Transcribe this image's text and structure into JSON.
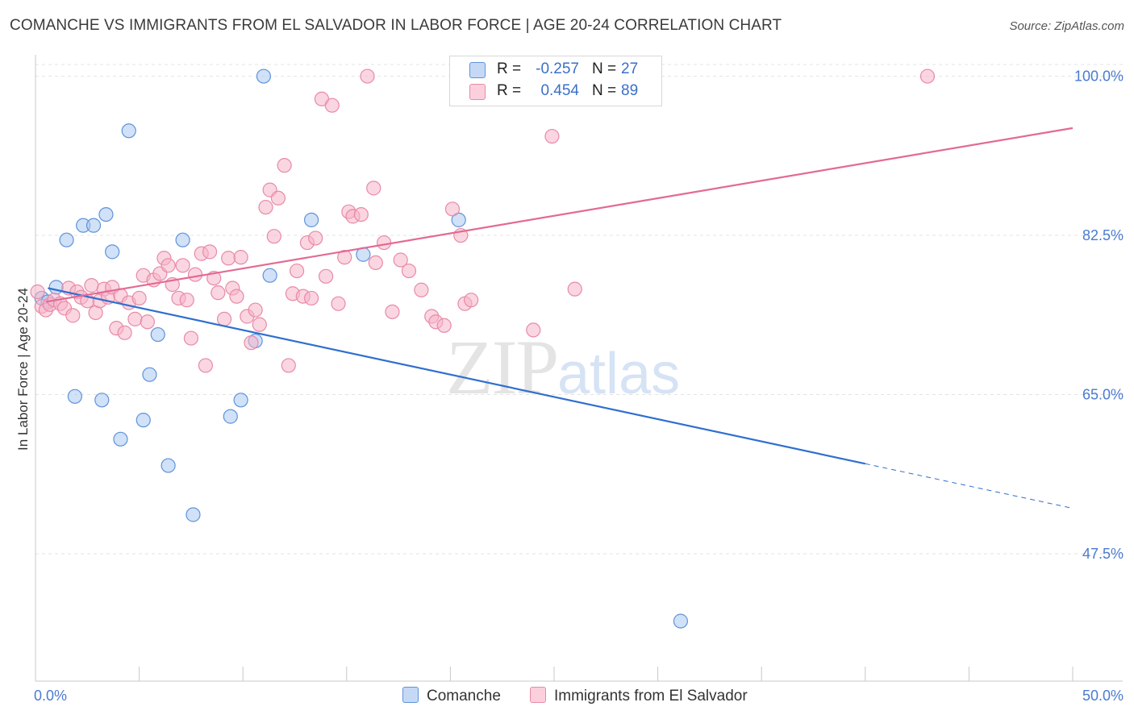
{
  "header": {
    "title": "COMANCHE VS IMMIGRANTS FROM EL SALVADOR IN LABOR FORCE | AGE 20-24 CORRELATION CHART",
    "source": "Source: ZipAtlas.com"
  },
  "watermark": {
    "zip": "ZIP",
    "atlas": "atlas"
  },
  "legend": {
    "rows": [
      {
        "r_label": "R =",
        "r_value": "-0.257",
        "n_label": "N =",
        "n_value": "27",
        "color": "#a9c8f2"
      },
      {
        "r_label": "R =",
        "r_value": "0.454",
        "n_label": "N =",
        "n_value": "89",
        "color": "#f6b5c8"
      }
    ]
  },
  "bottom_legend": {
    "comanche": "Comanche",
    "salvador": "Immigrants from El Salvador"
  },
  "colors": {
    "comanche_fill": "#a9c8f2",
    "comanche_stroke": "#5f93d9",
    "comanche_line": "#2f6fcf",
    "salvador_fill": "#f6b5c8",
    "salvador_stroke": "#e88aa6",
    "salvador_line": "#e36a93",
    "tick_label": "#4a7bd0",
    "grid": "#e3e3e3"
  },
  "chart_data": {
    "type": "scatter",
    "title": "COMANCHE VS IMMIGRANTS FROM EL SALVADOR IN LABOR FORCE | AGE 20-24 CORRELATION CHART",
    "xlabel": "",
    "ylabel": "In Labor Force | Age 20-24",
    "xlim": [
      0,
      50
    ],
    "ylim": [
      33.5,
      102
    ],
    "x_tick_labels": [
      "0.0%",
      "50.0%"
    ],
    "y_ticks": [
      47.5,
      65.0,
      82.5,
      100.0
    ],
    "y_tick_labels": [
      "47.5%",
      "65.0%",
      "82.5%",
      "100.0%"
    ],
    "grid": true,
    "legend_position": "top-center",
    "series": [
      {
        "name": "Comanche",
        "r": -0.257,
        "n": 27,
        "points": [
          [
            0.3,
            75.6
          ],
          [
            0.6,
            75.2
          ],
          [
            1.0,
            76.8
          ],
          [
            1.5,
            82.0
          ],
          [
            1.9,
            64.8
          ],
          [
            2.3,
            83.6
          ],
          [
            2.8,
            83.6
          ],
          [
            3.2,
            64.4
          ],
          [
            3.4,
            84.8
          ],
          [
            3.7,
            80.7
          ],
          [
            4.1,
            60.1
          ],
          [
            4.5,
            94.0
          ],
          [
            5.2,
            62.2
          ],
          [
            5.5,
            67.2
          ],
          [
            5.9,
            71.6
          ],
          [
            6.4,
            57.2
          ],
          [
            7.1,
            82.0
          ],
          [
            7.6,
            51.8
          ],
          [
            9.4,
            62.6
          ],
          [
            9.9,
            64.4
          ],
          [
            10.6,
            70.9
          ],
          [
            11.0,
            100.0
          ],
          [
            11.3,
            78.1
          ],
          [
            13.3,
            84.2
          ],
          [
            15.8,
            80.4
          ],
          [
            20.4,
            84.2
          ],
          [
            31.1,
            40.1
          ]
        ],
        "trend": {
          "x0": 0.6,
          "y0": 76.7,
          "x1": 40.0,
          "y1": 57.4,
          "dash_to_x": 50.0,
          "dash_to_y": 52.5
        }
      },
      {
        "name": "Immigrants from El Salvador",
        "r": 0.454,
        "n": 89,
        "points": [
          [
            0.1,
            76.3
          ],
          [
            0.3,
            74.7
          ],
          [
            0.5,
            74.3
          ],
          [
            0.7,
            74.9
          ],
          [
            0.9,
            75.4
          ],
          [
            1.2,
            75.0
          ],
          [
            1.4,
            74.5
          ],
          [
            1.6,
            76.7
          ],
          [
            1.8,
            73.7
          ],
          [
            2.0,
            76.3
          ],
          [
            2.2,
            75.7
          ],
          [
            2.5,
            75.3
          ],
          [
            2.7,
            77.0
          ],
          [
            2.9,
            74.0
          ],
          [
            3.1,
            75.3
          ],
          [
            3.3,
            76.6
          ],
          [
            3.5,
            75.7
          ],
          [
            3.7,
            76.8
          ],
          [
            3.9,
            72.3
          ],
          [
            4.1,
            75.9
          ],
          [
            4.3,
            71.8
          ],
          [
            4.5,
            75.1
          ],
          [
            4.8,
            73.3
          ],
          [
            5.0,
            75.6
          ],
          [
            5.2,
            78.1
          ],
          [
            5.4,
            73.0
          ],
          [
            5.7,
            77.6
          ],
          [
            6.0,
            78.3
          ],
          [
            6.2,
            80.0
          ],
          [
            6.4,
            79.2
          ],
          [
            6.6,
            77.1
          ],
          [
            6.9,
            75.6
          ],
          [
            7.1,
            79.2
          ],
          [
            7.3,
            75.4
          ],
          [
            7.5,
            71.2
          ],
          [
            7.7,
            78.2
          ],
          [
            8.0,
            80.5
          ],
          [
            8.2,
            68.2
          ],
          [
            8.4,
            80.7
          ],
          [
            8.6,
            77.8
          ],
          [
            8.8,
            76.2
          ],
          [
            9.1,
            73.3
          ],
          [
            9.3,
            80.0
          ],
          [
            9.5,
            76.7
          ],
          [
            9.7,
            75.8
          ],
          [
            9.9,
            80.1
          ],
          [
            10.2,
            73.6
          ],
          [
            10.4,
            70.7
          ],
          [
            10.6,
            74.3
          ],
          [
            10.8,
            72.7
          ],
          [
            11.1,
            85.6
          ],
          [
            11.3,
            87.5
          ],
          [
            11.5,
            82.4
          ],
          [
            11.7,
            86.6
          ],
          [
            12.0,
            90.2
          ],
          [
            12.2,
            68.2
          ],
          [
            12.4,
            76.1
          ],
          [
            12.6,
            78.6
          ],
          [
            12.9,
            75.8
          ],
          [
            13.1,
            81.7
          ],
          [
            13.3,
            75.6
          ],
          [
            13.5,
            82.2
          ],
          [
            13.8,
            97.5
          ],
          [
            14.0,
            78.0
          ],
          [
            14.3,
            96.8
          ],
          [
            14.6,
            75.0
          ],
          [
            14.9,
            80.1
          ],
          [
            15.1,
            85.1
          ],
          [
            15.3,
            84.6
          ],
          [
            15.7,
            84.8
          ],
          [
            16.0,
            100.0
          ],
          [
            16.3,
            87.7
          ],
          [
            16.4,
            79.5
          ],
          [
            16.8,
            81.7
          ],
          [
            17.2,
            74.1
          ],
          [
            17.6,
            79.8
          ],
          [
            18.0,
            78.6
          ],
          [
            18.6,
            76.5
          ],
          [
            19.1,
            73.6
          ],
          [
            19.3,
            73.0
          ],
          [
            19.7,
            72.6
          ],
          [
            20.1,
            85.4
          ],
          [
            20.5,
            82.5
          ],
          [
            20.7,
            75.0
          ],
          [
            21.0,
            75.4
          ],
          [
            24.0,
            72.1
          ],
          [
            24.9,
            93.4
          ],
          [
            26.0,
            76.6
          ],
          [
            43.0,
            100.0
          ]
        ],
        "trend": {
          "x0": 0.5,
          "y0": 75.2,
          "x1": 50.0,
          "y1": 94.3
        }
      }
    ]
  }
}
